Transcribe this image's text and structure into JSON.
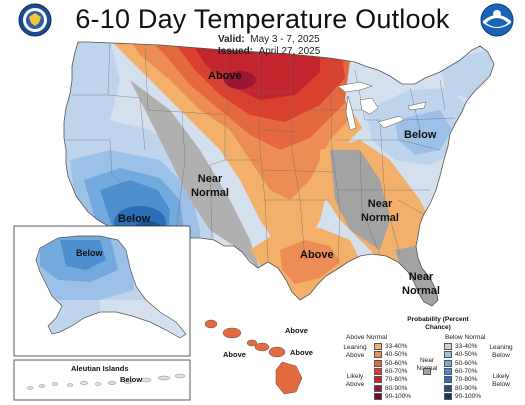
{
  "title": "6-10 Day Temperature Outlook",
  "valid_label": "Valid:",
  "valid_value": "May 3 - 7, 2025",
  "issued_label": "Issued:",
  "issued_value": "April 27, 2025",
  "logos": {
    "left": "department-of-commerce-seal",
    "right": "noaa-logo"
  },
  "region_labels": {
    "north_plains": "Above",
    "northeast": "Below",
    "central": "Near Normal",
    "southwest": "Below",
    "southeast": "Near Normal",
    "gulf": "Above",
    "florida": "Near Normal",
    "alaska": "Below",
    "aleutian_title": "Aleutian Islands",
    "aleutian": "Below",
    "hawaii_a": "Above",
    "hawaii_b": "Above",
    "hawaii_c": "Above"
  },
  "legend": {
    "title": "Probability (Percent Chance)",
    "above_header": "Above Normal",
    "below_header": "Below Normal",
    "leaning_above": "Leaning Above",
    "likely_above": "Likely Above",
    "near_normal": "Near Normal",
    "leaning_below": "Leaning Below",
    "likely_below": "Likely Below",
    "above_bins": [
      "33-40%",
      "40-50%",
      "50-60%",
      "60-70%",
      "70-80%",
      "80-90%",
      "90-100%"
    ],
    "below_bins": [
      "33-40%",
      "40-50%",
      "50-60%",
      "60-70%",
      "70-80%",
      "80-90%",
      "90-100%"
    ],
    "above_colors": [
      "#f2b06a",
      "#ee8c55",
      "#e5693f",
      "#d8402f",
      "#c2262c",
      "#9b1630",
      "#6a0d2b"
    ],
    "below_colors": [
      "#bed3ec",
      "#9cc1e6",
      "#74a9dd",
      "#4e8fd0",
      "#2d6fb6",
      "#1f4f95",
      "#1b2f6e"
    ],
    "near_normal_color": "#a3a3a3"
  }
}
